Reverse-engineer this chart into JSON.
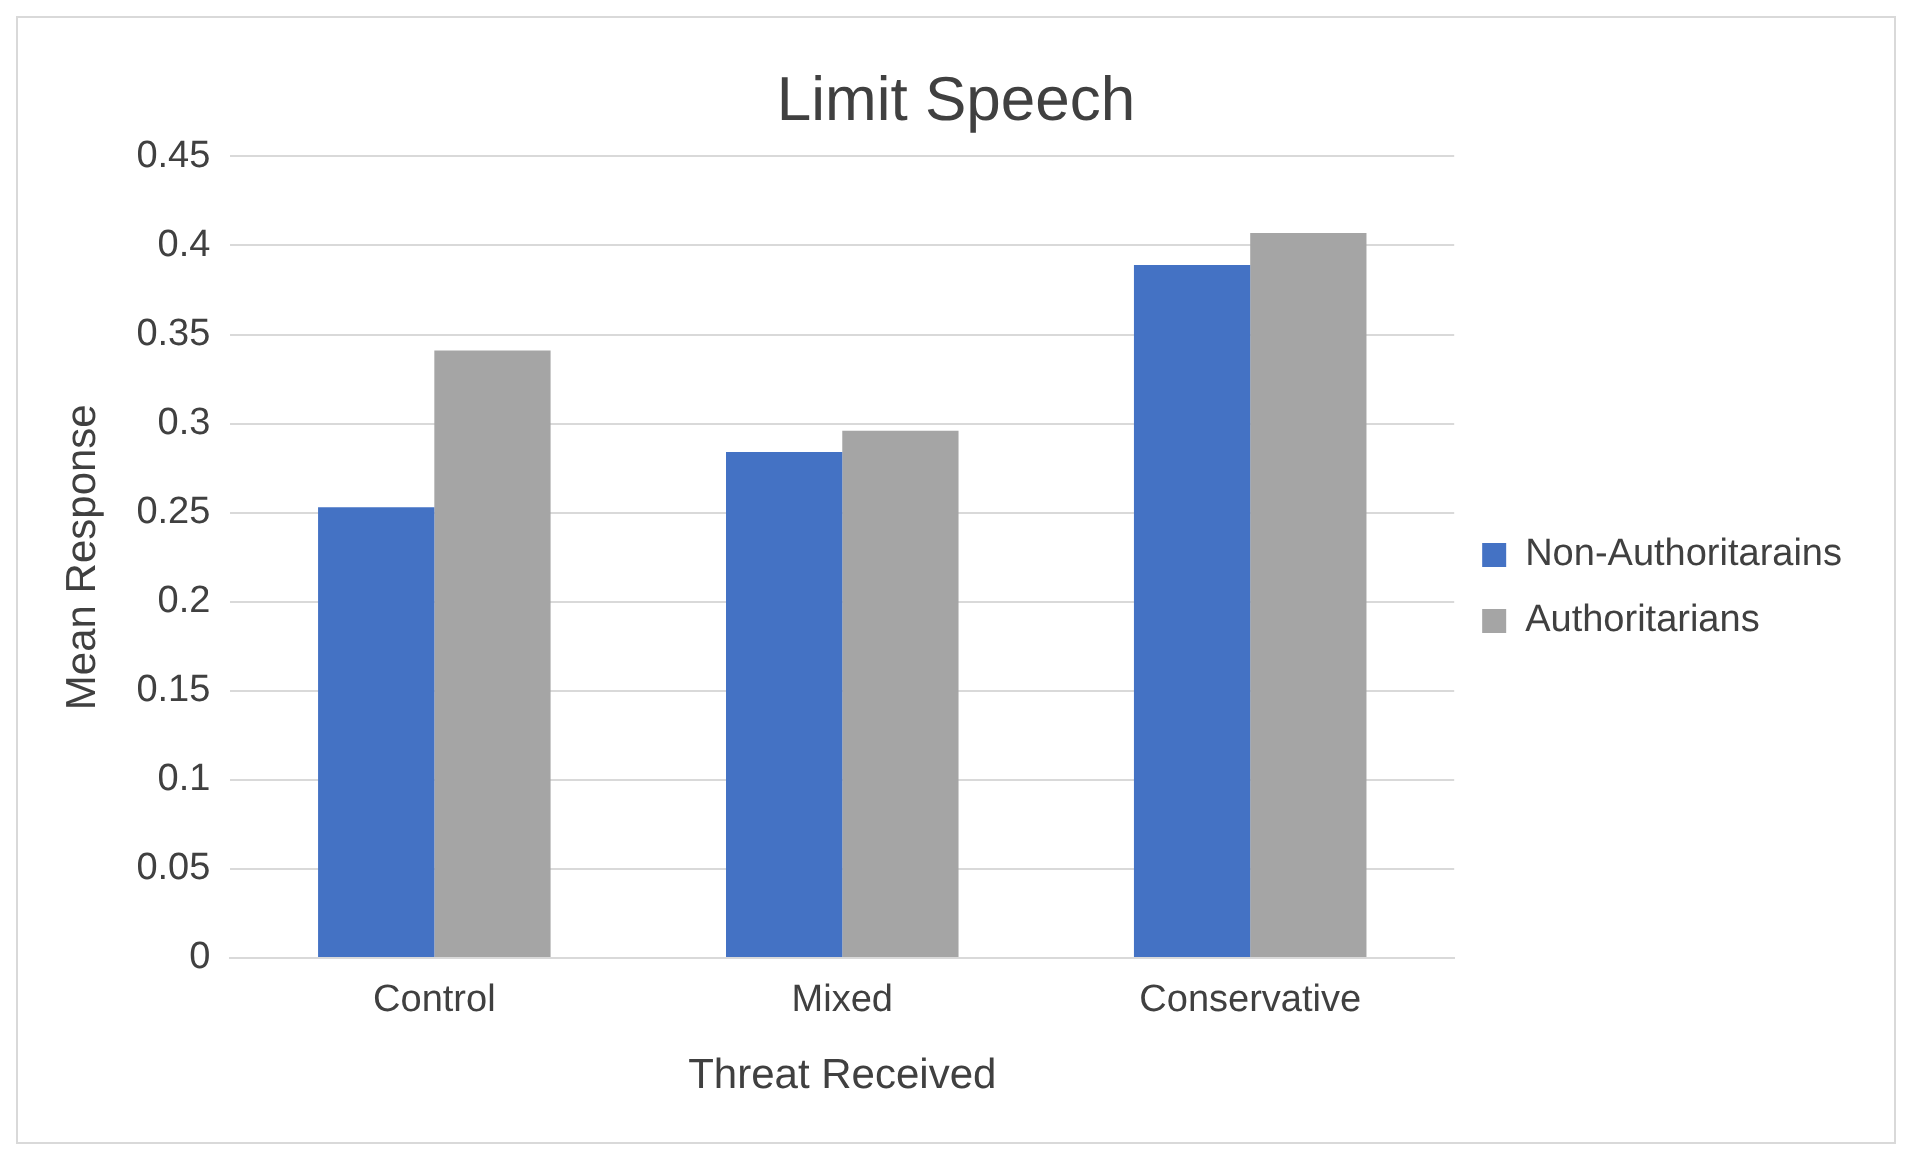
{
  "chart_data": {
    "type": "bar",
    "title": "Limit Speech",
    "xlabel": "Threat Received",
    "ylabel": "Mean Response",
    "categories": [
      "Control",
      "Mixed",
      "Conservative"
    ],
    "series": [
      {
        "name": "Non-Authoritarains",
        "color": "#4472c4",
        "values": [
          0.253,
          0.284,
          0.389
        ]
      },
      {
        "name": "Authoritarians",
        "color": "#a5a5a5",
        "values": [
          0.341,
          0.296,
          0.407
        ]
      }
    ],
    "ylim": [
      0,
      0.45
    ],
    "yticks": [
      0,
      0.05,
      0.1,
      0.15,
      0.2,
      0.25,
      0.3,
      0.35,
      0.4,
      0.45
    ],
    "grid": "y",
    "legend": "right"
  }
}
